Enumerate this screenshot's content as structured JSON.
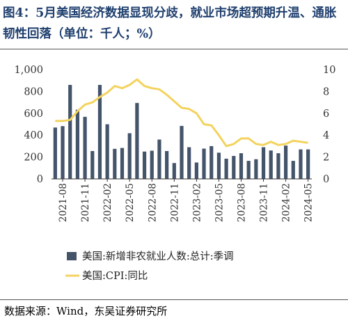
{
  "figure": {
    "title": "图4：5月美国经济数据显现分歧，就业市场超预期升温、通胀韧性回落（单位：千人；%）",
    "source": "数据来源：Wind，东吴证券研究所"
  },
  "chart_data": {
    "type": "bar+line",
    "x": [
      "2021-07",
      "2021-08",
      "2021-09",
      "2021-10",
      "2021-11",
      "2021-12",
      "2022-01",
      "2022-02",
      "2022-03",
      "2022-04",
      "2022-05",
      "2022-06",
      "2022-07",
      "2022-08",
      "2022-09",
      "2022-10",
      "2022-11",
      "2022-12",
      "2023-01",
      "2023-02",
      "2023-03",
      "2023-04",
      "2023-05",
      "2023-06",
      "2023-07",
      "2023-08",
      "2023-09",
      "2023-10",
      "2023-11",
      "2023-12",
      "2024-01",
      "2024-02",
      "2024-03",
      "2024-04",
      "2024-05"
    ],
    "xtick_labels": [
      "2021-08",
      "2021-11",
      "2022-02",
      "2022-05",
      "2022-08",
      "2022-11",
      "2023-02",
      "2023-05",
      "2023-08",
      "2023-11",
      "2024-02",
      "2024-05"
    ],
    "series": [
      {
        "name": "美国:新增非农就业人数:总计:季调",
        "axis": "left",
        "color": "#44546a",
        "values": [
          470,
          483,
          860,
          633,
          568,
          255,
          860,
          500,
          275,
          283,
          418,
          695,
          250,
          258,
          360,
          255,
          145,
          485,
          290,
          150,
          277,
          300,
          240,
          185,
          210,
          235,
          165,
          180,
          290,
          260,
          235,
          305,
          165,
          270,
          270
        ]
      },
      {
        "name": "美国:CPI:同比",
        "axis": "right",
        "color": "#f3d35e",
        "values": [
          5.3,
          5.3,
          5.4,
          6.2,
          6.8,
          7.0,
          7.5,
          7.9,
          8.5,
          8.3,
          8.6,
          9.1,
          8.5,
          8.3,
          8.2,
          7.7,
          7.1,
          6.5,
          6.4,
          6.0,
          5.0,
          4.9,
          4.0,
          3.0,
          3.2,
          3.7,
          3.7,
          3.2,
          3.1,
          3.4,
          3.1,
          3.2,
          3.5,
          3.4,
          3.3
        ]
      }
    ],
    "y_left": {
      "ticks": [
        "0",
        "200",
        "400",
        "600",
        "800",
        "1,000"
      ],
      "ylim": [
        0,
        1000
      ]
    },
    "y_right": {
      "ticks": [
        "0",
        "2",
        "4",
        "6",
        "8",
        "10"
      ],
      "ylim": [
        0,
        10
      ]
    },
    "legend": {
      "placement": "bottom-left"
    },
    "grid": false
  }
}
